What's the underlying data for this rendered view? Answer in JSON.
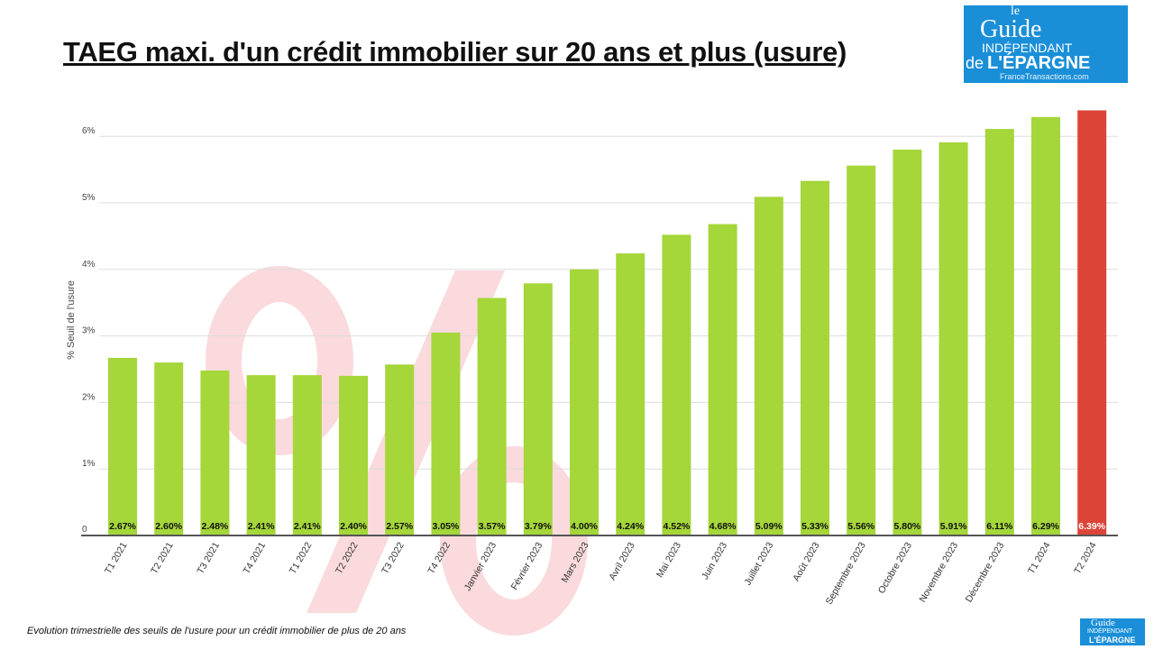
{
  "title": "TAEG maxi. d'un crédit immobilier sur 20 ans et plus (usure)",
  "footer": "Evolution trimestrielle des seuils de l'usure pour un crédit immobilier de plus de 20 ans",
  "logo": {
    "le": "le",
    "guide": "Guide",
    "independant": "INDÉPENDANT",
    "de": "de",
    "epargne": "L'ÉPARGNE",
    "partner": "FranceTransactions.com"
  },
  "background_watermark": "%",
  "colors": {
    "bar": "#a5d63a",
    "highlight": "#dc4437",
    "grid": "#dddddd",
    "axis": "#555555"
  },
  "chart_data": {
    "type": "bar",
    "title": "TAEG maxi. d'un crédit immobilier sur 20 ans et plus (usure)",
    "xlabel": "",
    "ylabel": "% Seuil de l'usure",
    "ylim": [
      0,
      6.5
    ],
    "yticks": [
      0,
      1,
      2,
      3,
      4,
      5,
      6
    ],
    "ytick_labels": [
      "0",
      "1%",
      "2%",
      "3%",
      "4%",
      "5%",
      "6%"
    ],
    "grid": true,
    "categories": [
      "T1 2021",
      "T2 2021",
      "T3 2021",
      "T4 2021",
      "T1 2022",
      "T2 2022",
      "T3 2022",
      "T4 2022",
      "Janvier 2023",
      "Février 2023",
      "Mars 2023",
      "Avril 2023",
      "Mai 2023",
      "Juin 2023",
      "Juillet 2023",
      "Août 2023",
      "Septembre 2023",
      "Octobre 2023",
      "Novembre 2023",
      "Décembre 2023",
      "T1 2024",
      "T2 2024"
    ],
    "values": [
      2.67,
      2.6,
      2.48,
      2.41,
      2.41,
      2.4,
      2.57,
      3.05,
      3.57,
      3.79,
      4.0,
      4.24,
      4.52,
      4.68,
      5.09,
      5.33,
      5.56,
      5.8,
      5.91,
      6.11,
      6.29,
      6.39
    ],
    "data_labels": [
      "2.67%",
      "2.60%",
      "2.48%",
      "2.41%",
      "2.41%",
      "2.40%",
      "2.57%",
      "3.05%",
      "3.57%",
      "3.79%",
      "4.00%",
      "4.24%",
      "4.52%",
      "4.68%",
      "5.09%",
      "5.33%",
      "5.56%",
      "5.80%",
      "5.91%",
      "6.11%",
      "6.29%",
      "6.39%"
    ],
    "highlight_index": 21
  }
}
